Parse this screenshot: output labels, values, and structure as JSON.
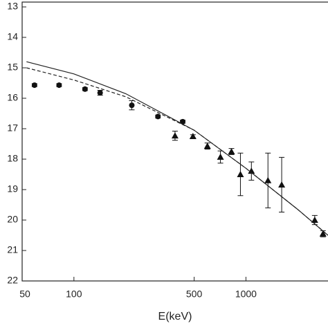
{
  "chart_data": {
    "type": "scatter",
    "x_label": "E(keV)",
    "xlim": [
      50,
      3000
    ],
    "xticks": [
      50,
      100,
      500,
      1000
    ],
    "x_log": true,
    "ylim": [
      13,
      22
    ],
    "yticks": [
      13,
      14,
      15,
      16,
      17,
      18,
      19,
      20,
      21,
      22
    ],
    "y_inverted": true,
    "series": [
      {
        "mode": "points",
        "marker": "circle",
        "color": "#111111",
        "x": [
          59,
          82,
          116,
          142,
          217,
          308,
          429
        ],
        "values": [
          15.57,
          15.57,
          15.7,
          15.82,
          16.23,
          16.6,
          16.77
        ],
        "errors": [
          0.05,
          0.05,
          0.05,
          0.08,
          0.15,
          0.05,
          0.05
        ]
      },
      {
        "mode": "points",
        "marker": "triangle",
        "color": "#111111",
        "x": [
          387,
          492,
          597,
          711,
          824,
          929,
          1076,
          1343,
          1614,
          2512,
          2805
        ],
        "values": [
          17.23,
          17.25,
          17.57,
          17.93,
          17.75,
          18.5,
          18.39,
          18.7,
          18.84,
          20.0,
          20.45
        ],
        "errors": [
          0.15,
          0.05,
          0.1,
          0.2,
          0.1,
          0.7,
          0.3,
          0.9,
          0.9,
          0.15,
          0.1
        ]
      },
      {
        "mode": "line",
        "dash": false,
        "color": "#222222",
        "x": [
          53,
          100,
          200,
          500,
          1000,
          2000,
          3000
        ],
        "values": [
          14.8,
          15.2,
          15.85,
          17.05,
          18.3,
          19.65,
          20.5
        ]
      },
      {
        "mode": "line",
        "dash": true,
        "color": "#222222",
        "x": [
          53,
          100,
          200,
          500,
          1000,
          2000,
          3000
        ],
        "values": [
          15.0,
          15.4,
          15.95,
          17.05,
          18.3,
          19.65,
          20.5
        ]
      }
    ]
  }
}
